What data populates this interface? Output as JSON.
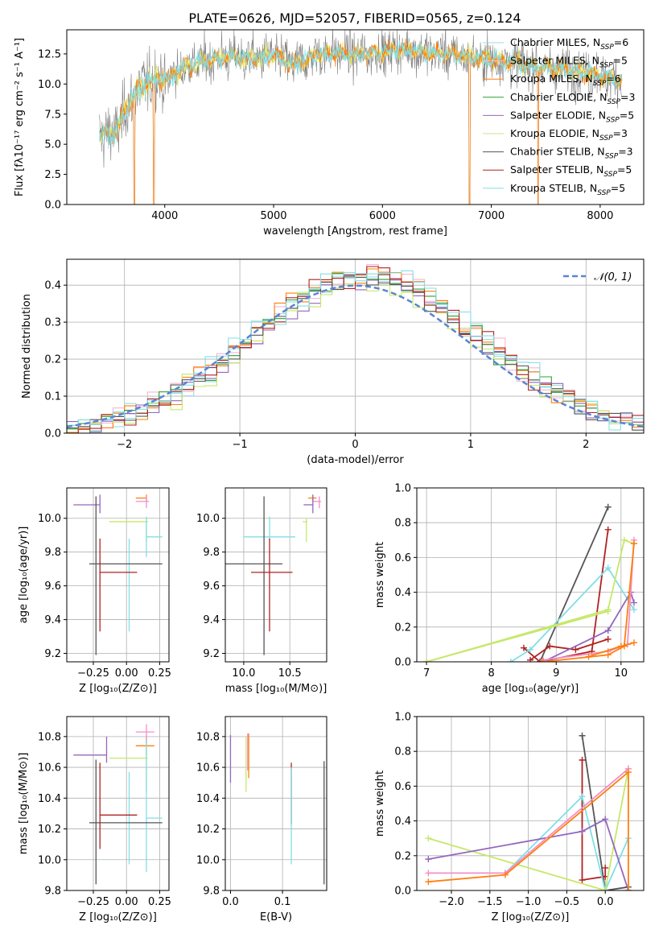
{
  "figure": {
    "title": "PLATE=0626, MJD=52057, FIBERID=0565, z=0.124"
  },
  "chart_data": [
    {
      "id": "spectrum",
      "type": "line",
      "xlabel": "wavelength [Angstrom, rest frame]",
      "ylabel": "Flux [fλ10⁻¹⁷ erg cm⁻² s⁻¹ A⁻¹]",
      "xlim": [
        3100,
        8400
      ],
      "ylim": [
        0,
        14.5
      ],
      "xticks": [
        4000,
        5000,
        6000,
        7000,
        8000
      ],
      "yticks": [
        0.0,
        2.5,
        5.0,
        7.5,
        10.0,
        12.5
      ],
      "legend_position": "top-right",
      "legend": [
        {
          "label": "Chabrier MILES, N",
          "sub": "SSP",
          "tail": "=6",
          "color": "#9edae5"
        },
        {
          "label": "Salpeter MILES, N",
          "sub": "SSP",
          "tail": "=5",
          "color": "#f7b6d2"
        },
        {
          "label": "Kroupa MILES, N",
          "sub": "SSP",
          "tail": "=6",
          "color": "#ff7f0e"
        },
        {
          "label": "Chabrier ELODIE, N",
          "sub": "SSP",
          "tail": "=3",
          "color": "#2ca02c"
        },
        {
          "label": "Salpeter ELODIE, N",
          "sub": "SSP",
          "tail": "=5",
          "color": "#9467bd"
        },
        {
          "label": "Kroupa ELODIE, N",
          "sub": "SSP",
          "tail": "=3",
          "color": "#dbdb8d"
        },
        {
          "label": "Chabrier STELIB, N",
          "sub": "SSP",
          "tail": "=3",
          "color": "#555555"
        },
        {
          "label": "Salpeter STELIB, N",
          "sub": "SSP",
          "tail": "=5",
          "color": "#b22222"
        },
        {
          "label": "Kroupa STELIB, N",
          "sub": "SSP",
          "tail": "=5",
          "color": "#80dfe6"
        }
      ],
      "series_colors": [
        "#808080",
        "#e8e85a",
        "#ff7f0e",
        "#80dfe6"
      ],
      "continuum": [
        [
          3400,
          5.8
        ],
        [
          3550,
          6.0
        ],
        [
          3650,
          8.0
        ],
        [
          3750,
          9.5
        ],
        [
          3900,
          10.5
        ],
        [
          4000,
          10.3
        ],
        [
          4200,
          11.5
        ],
        [
          4400,
          12.0
        ],
        [
          4600,
          12.3
        ],
        [
          4800,
          12.1
        ],
        [
          5000,
          12.4
        ],
        [
          5200,
          11.6
        ],
        [
          5400,
          12.5
        ],
        [
          5600,
          12.6
        ],
        [
          5800,
          12.4
        ],
        [
          6000,
          12.7
        ],
        [
          6200,
          12.9
        ],
        [
          6400,
          12.6
        ],
        [
          6600,
          12.5
        ],
        [
          6800,
          12.3
        ],
        [
          7000,
          12.0
        ],
        [
          7200,
          11.8
        ],
        [
          7500,
          11.4
        ],
        [
          7800,
          11.0
        ],
        [
          8000,
          10.7
        ],
        [
          8200,
          10.3
        ]
      ],
      "dips": [
        [
          3720,
          0
        ],
        [
          3900,
          0
        ],
        [
          6800,
          0
        ],
        [
          7430,
          0
        ]
      ]
    },
    {
      "id": "residuals",
      "type": "step",
      "xlabel": "(data-model)/error",
      "ylabel": "Normed distribution",
      "xlim": [
        -2.5,
        2.5
      ],
      "ylim": [
        0,
        0.47
      ],
      "xticks": [
        -2,
        -1,
        0,
        1,
        2
      ],
      "yticks": [
        0.0,
        0.1,
        0.2,
        0.3,
        0.4
      ],
      "grid": true,
      "legend": [
        {
          "label": "𝒩(0, 1)",
          "color": "#5b84d4",
          "style": "dashed"
        }
      ],
      "legend_position": "top-right",
      "bins": 50,
      "series_colors": [
        "#9edae5",
        "#f7b6d2",
        "#ff7f0e",
        "#2ca02c",
        "#9467bd",
        "#c6e86a",
        "#555555",
        "#b22222",
        "#80dfe6"
      ]
    },
    {
      "id": "age-vs-Z",
      "type": "errorbar",
      "xlabel": "Z [log₁₀(Z/Z⊙)]",
      "ylabel": "age  [log₁₀(age/yr)]",
      "xlim": [
        -0.45,
        0.32
      ],
      "ylim": [
        9.15,
        10.18
      ],
      "xticks": [
        -0.25,
        0.0,
        0.25
      ],
      "yticks": [
        9.2,
        9.4,
        9.6,
        9.8,
        10.0
      ],
      "grid": true,
      "points": [
        {
          "x": 0.15,
          "xerr": [
            0.08,
            0.0
          ],
          "y": 10.12,
          "yerr": [
            0.02,
            0.02
          ],
          "color": "#ff7f0e"
        },
        {
          "x": 0.15,
          "xerr": [
            0.08,
            0.02
          ],
          "y": 10.1,
          "yerr": [
            0.04,
            0.03
          ],
          "color": "#f48fc8"
        },
        {
          "x": -0.2,
          "xerr": [
            0.2,
            0.0
          ],
          "y": 10.08,
          "yerr": [
            0.05,
            0.06
          ],
          "color": "#9467bd"
        },
        {
          "x": 0.15,
          "xerr": [
            0.28,
            0.01
          ],
          "y": 9.98,
          "yerr": [
            0.12,
            0.02
          ],
          "color": "#c6e86a"
        },
        {
          "x": 0.15,
          "xerr": [
            0.0,
            0.12
          ],
          "y": 9.89,
          "yerr": [
            0.12,
            0.12
          ],
          "color": "#80dfe6"
        },
        {
          "x": 0.02,
          "xerr": [
            0.0,
            0.0
          ],
          "y": 9.6,
          "yerr": [
            0.27,
            0.28
          ],
          "color": "#80dfe6"
        },
        {
          "x": -0.23,
          "xerr": [
            0.05,
            0.5
          ],
          "y": 9.73,
          "yerr": [
            0.54,
            0.4
          ],
          "color": "#555555"
        },
        {
          "x": -0.2,
          "xerr": [
            0.0,
            0.28
          ],
          "y": 9.68,
          "yerr": [
            0.35,
            0.2
          ],
          "color": "#b22222"
        }
      ]
    },
    {
      "id": "age-vs-mass",
      "type": "errorbar",
      "xlabel": "mass [log₁₀(M/M⊙)]",
      "ylabel": "",
      "xlim": [
        9.8,
        10.9
      ],
      "ylim": [
        9.15,
        10.18
      ],
      "xticks": [
        10.0,
        10.5
      ],
      "yticks": [
        9.2,
        9.4,
        9.6,
        9.8,
        10.0
      ],
      "grid": true,
      "points": [
        {
          "x": 10.75,
          "xerr": [
            0.05,
            0.04
          ],
          "y": 10.12,
          "yerr": [
            0.02,
            0.02
          ],
          "color": "#ff7f0e"
        },
        {
          "x": 10.82,
          "xerr": [
            0.07,
            0.02
          ],
          "y": 10.1,
          "yerr": [
            0.04,
            0.03
          ],
          "color": "#f48fc8"
        },
        {
          "x": 10.75,
          "xerr": [
            0.1,
            0.0
          ],
          "y": 10.08,
          "yerr": [
            0.05,
            0.06
          ],
          "color": "#9467bd"
        },
        {
          "x": 10.68,
          "xerr": [
            0.04,
            0.01
          ],
          "y": 9.98,
          "yerr": [
            0.12,
            0.02
          ],
          "color": "#c6e86a"
        },
        {
          "x": 10.28,
          "xerr": [
            0.28,
            0.28
          ],
          "y": 9.89,
          "yerr": [
            0.02,
            0.12
          ],
          "color": "#80dfe6"
        },
        {
          "x": 10.22,
          "xerr": [
            0.45,
            0.2
          ],
          "y": 9.73,
          "yerr": [
            0.54,
            0.4
          ],
          "color": "#555555"
        },
        {
          "x": 10.28,
          "xerr": [
            0.2,
            0.25
          ],
          "y": 9.68,
          "yerr": [
            0.35,
            0.2
          ],
          "color": "#b22222"
        }
      ]
    },
    {
      "id": "weight-vs-age",
      "type": "line",
      "xlabel": "age  [log₁₀(age/yr)]",
      "ylabel": "mass weight",
      "xlim": [
        6.85,
        10.35
      ],
      "ylim": [
        0,
        1.0
      ],
      "xticks": [
        7,
        8,
        9,
        10
      ],
      "yticks": [
        0.0,
        0.2,
        0.4,
        0.6,
        0.8,
        1.0
      ],
      "grid": true,
      "series": [
        {
          "color": "#555555",
          "x": [
            8.75,
            9.8
          ],
          "y": [
            0.0,
            0.89
          ]
        },
        {
          "color": "#b22222",
          "x": [
            8.5,
            8.75,
            9.55,
            9.8
          ],
          "y": [
            0.08,
            0.0,
            0.06,
            0.76
          ]
        },
        {
          "color": "#b22222",
          "x": [
            8.6,
            8.9,
            9.3,
            9.8
          ],
          "y": [
            0.01,
            0.09,
            0.07,
            0.13
          ]
        },
        {
          "color": "#80dfe6",
          "x": [
            8.3,
            8.6,
            9.8,
            10.2
          ],
          "y": [
            0.0,
            0.07,
            0.54,
            0.3
          ]
        },
        {
          "color": "#c6e86a",
          "x": [
            7.0,
            9.8,
            10.05,
            10.2
          ],
          "y": [
            0.0,
            0.3,
            0.7,
            0.68
          ]
        },
        {
          "color": "#c6e86a",
          "x": [
            7.0,
            9.8
          ],
          "y": [
            0.0,
            0.29
          ]
        },
        {
          "color": "#9467bd",
          "x": [
            8.8,
            9.8,
            10.15,
            10.2
          ],
          "y": [
            0.0,
            0.18,
            0.4,
            0.34
          ]
        },
        {
          "color": "#f48fc8",
          "x": [
            8.8,
            9.8,
            10.1,
            10.2
          ],
          "y": [
            0.01,
            0.06,
            0.1,
            0.7
          ]
        },
        {
          "color": "#ff7f0e",
          "x": [
            8.8,
            9.8,
            10.05,
            10.2
          ],
          "y": [
            0.0,
            0.04,
            0.09,
            0.68
          ]
        },
        {
          "color": "#ff7f0e",
          "x": [
            9.5,
            10.0,
            10.2
          ],
          "y": [
            0.03,
            0.09,
            0.11
          ]
        }
      ]
    },
    {
      "id": "mass-vs-Z",
      "type": "errorbar",
      "xlabel": "Z [log₁₀(Z/Z⊙)]",
      "ylabel": "mass [log₁₀(M/M⊙)]",
      "xlim": [
        -0.45,
        0.32
      ],
      "ylim": [
        9.8,
        10.93
      ],
      "xticks": [
        -0.25,
        0.0,
        0.25
      ],
      "yticks": [
        9.8,
        10.0,
        10.2,
        10.4,
        10.6,
        10.8
      ],
      "grid": true,
      "points": [
        {
          "x": 0.15,
          "xerr": [
            0.08,
            0.06
          ],
          "y": 10.74,
          "yerr": [
            0.06,
            0.06
          ],
          "color": "#ff7f0e"
        },
        {
          "x": 0.15,
          "xerr": [
            0.08,
            0.06
          ],
          "y": 10.83,
          "yerr": [
            0.07,
            0.05
          ],
          "color": "#f48fc8"
        },
        {
          "x": -0.15,
          "xerr": [
            0.25,
            0.0
          ],
          "y": 10.68,
          "yerr": [
            0.05,
            0.12
          ],
          "color": "#9467bd"
        },
        {
          "x": 0.15,
          "xerr": [
            0.28,
            0.01
          ],
          "y": 10.66,
          "yerr": [
            0.22,
            0.04
          ],
          "color": "#c6e86a"
        },
        {
          "x": 0.15,
          "xerr": [
            0.0,
            0.12
          ],
          "y": 10.27,
          "yerr": [
            0.35,
            0.51
          ],
          "color": "#80dfe6"
        },
        {
          "x": 0.02,
          "xerr": [
            0.0,
            0.0
          ],
          "y": 10.3,
          "yerr": [
            0.33,
            0.27
          ],
          "color": "#80dfe6"
        },
        {
          "x": -0.23,
          "xerr": [
            0.05,
            0.5
          ],
          "y": 10.24,
          "yerr": [
            0.4,
            0.41
          ],
          "color": "#555555"
        },
        {
          "x": -0.2,
          "xerr": [
            0.0,
            0.28
          ],
          "y": 10.29,
          "yerr": [
            0.22,
            0.34
          ],
          "color": "#b22222"
        }
      ]
    },
    {
      "id": "mass-vs-ebv",
      "type": "errorbar",
      "xlabel": "E(B-V)",
      "ylabel": "",
      "xlim": [
        -0.01,
        0.185
      ],
      "ylim": [
        9.8,
        10.93
      ],
      "xticks": [
        0.0,
        0.1
      ],
      "yticks": [
        9.8,
        10.0,
        10.2,
        10.4,
        10.6,
        10.8
      ],
      "grid": true,
      "points": [
        {
          "x": 0.0,
          "xerr": [
            0,
            0
          ],
          "y": 10.65,
          "yerr": [
            0.15,
            0.16
          ],
          "color": "#9467bd"
        },
        {
          "x": 0.03,
          "xerr": [
            0,
            0
          ],
          "y": 10.6,
          "yerr": [
            0.16,
            0.2
          ],
          "color": "#c6e86a"
        },
        {
          "x": 0.035,
          "xerr": [
            0,
            0
          ],
          "y": 10.65,
          "yerr": [
            0.12,
            0.17
          ],
          "color": "#ff7f0e"
        },
        {
          "x": 0.033,
          "xerr": [
            0,
            0
          ],
          "y": 10.7,
          "yerr": [
            0.12,
            0.12
          ],
          "color": "#f48fc8"
        },
        {
          "x": 0.117,
          "xerr": [
            0,
            0
          ],
          "y": 10.58,
          "yerr": [
            0.35,
            0.05
          ],
          "color": "#b22222"
        },
        {
          "x": 0.117,
          "xerr": [
            0,
            0
          ],
          "y": 10.27,
          "yerr": [
            0.3,
            0.33
          ],
          "color": "#80dfe6"
        },
        {
          "x": 0.18,
          "xerr": [
            0,
            0
          ],
          "y": 10.24,
          "yerr": [
            0.4,
            0.4
          ],
          "color": "#555555"
        }
      ]
    },
    {
      "id": "weight-vs-Z",
      "type": "line",
      "xlabel": "Z [log₁₀(Z/Z⊙)]",
      "ylabel": "mass weight",
      "xlim": [
        -2.45,
        0.5
      ],
      "ylim": [
        0,
        1.0
      ],
      "xticks": [
        -2.0,
        -1.5,
        -1.0,
        -0.5,
        0.0
      ],
      "yticks": [
        0.0,
        0.2,
        0.4,
        0.6,
        0.8,
        1.0
      ],
      "grid": true,
      "series": [
        {
          "color": "#555555",
          "x": [
            -0.3,
            0.0,
            0.3
          ],
          "y": [
            0.89,
            0.0,
            0.02
          ]
        },
        {
          "color": "#b22222",
          "x": [
            -0.3,
            -0.3,
            0.0,
            0.0
          ],
          "y": [
            0.75,
            0.06,
            0.08,
            0.13
          ]
        },
        {
          "color": "#80dfe6",
          "x": [
            -1.3,
            -0.3,
            0.0,
            0.3
          ],
          "y": [
            0.1,
            0.54,
            0.0,
            0.3
          ]
        },
        {
          "color": "#c6e86a",
          "x": [
            -2.3,
            0.0,
            0.3
          ],
          "y": [
            0.3,
            0.0,
            0.7
          ]
        },
        {
          "color": "#9467bd",
          "x": [
            -2.3,
            -0.3,
            0.0,
            0.3
          ],
          "y": [
            0.18,
            0.34,
            0.41,
            0.0
          ]
        },
        {
          "color": "#f48fc8",
          "x": [
            -2.3,
            -1.3,
            0.3
          ],
          "y": [
            0.1,
            0.1,
            0.7
          ]
        },
        {
          "color": "#ff7f0e",
          "x": [
            -2.3,
            -1.3,
            0.3,
            0.3
          ],
          "y": [
            0.05,
            0.09,
            0.68,
            0.0
          ]
        }
      ]
    }
  ]
}
